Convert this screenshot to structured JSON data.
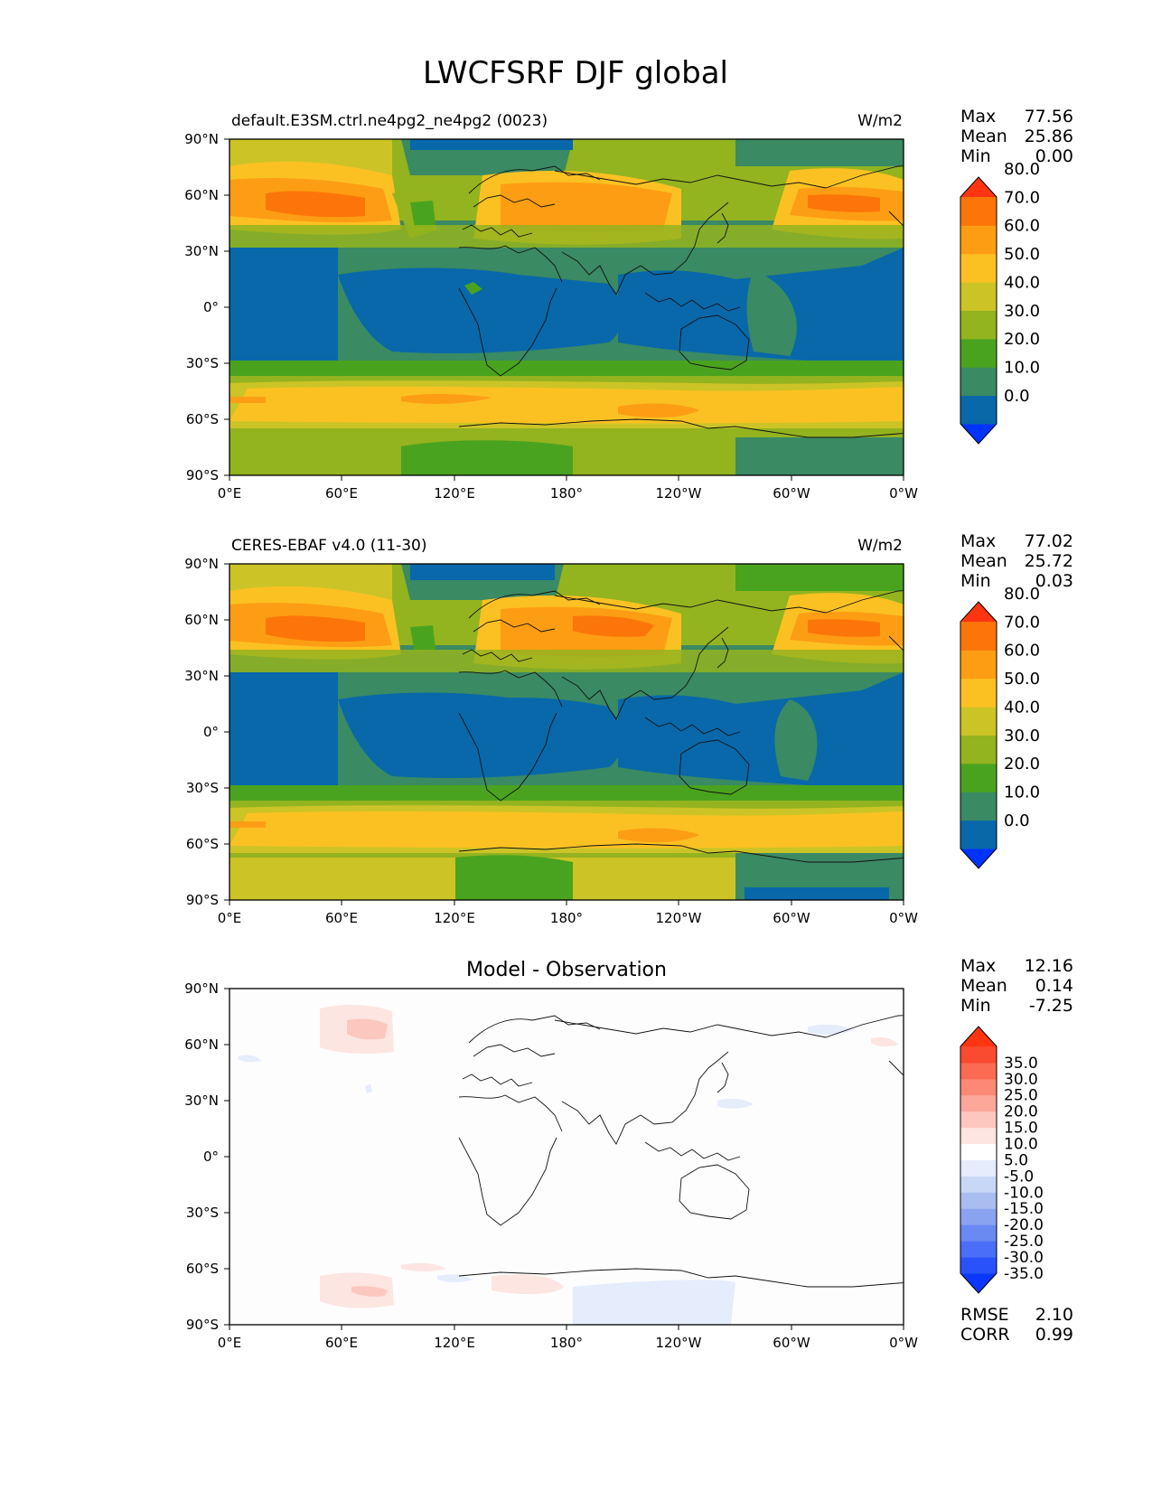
{
  "title": "LWCFSRF DJF global",
  "lat_labels": [
    "90°N",
    "60°N",
    "30°N",
    "0°",
    "30°S",
    "60°S",
    "90°S"
  ],
  "lon_labels": [
    "0°E",
    "60°E",
    "120°E",
    "180°",
    "120°W",
    "60°W",
    "0°W"
  ],
  "panels": [
    {
      "id": "test",
      "left_title": "default.E3SM.ctrl.ne4pg2_ne4pg2 (0023)",
      "center_title": "",
      "units": "W/m2",
      "stats": [
        {
          "label": "Max",
          "value": "77.56"
        },
        {
          "label": "Mean",
          "value": "25.86"
        },
        {
          "label": "Min",
          "value": "0.00"
        }
      ],
      "colorbar": {
        "ticks": [
          "80.0",
          "70.0",
          "60.0",
          "50.0",
          "40.0",
          "30.0",
          "20.0",
          "10.0",
          "0.0"
        ],
        "colors": [
          "#0033ff",
          "#0868aa",
          "#3a8a63",
          "#4aa31e",
          "#93b31f",
          "#ccc426",
          "#fbc122",
          "#fd9d13",
          "#fc7508",
          "#ff3511"
        ]
      }
    },
    {
      "id": "reference",
      "left_title": "CERES-EBAF v4.0 (11-30)",
      "center_title": "",
      "units": "W/m2",
      "stats": [
        {
          "label": "Max",
          "value": "77.02"
        },
        {
          "label": "Mean",
          "value": "25.72"
        },
        {
          "label": "Min",
          "value": "0.03"
        }
      ],
      "colorbar": {
        "ticks": [
          "80.0",
          "70.0",
          "60.0",
          "50.0",
          "40.0",
          "30.0",
          "20.0",
          "10.0",
          "0.0"
        ],
        "colors": [
          "#0033ff",
          "#0868aa",
          "#3a8a63",
          "#4aa31e",
          "#93b31f",
          "#ccc426",
          "#fbc122",
          "#fd9d13",
          "#fc7508",
          "#ff3511"
        ]
      }
    },
    {
      "id": "difference",
      "left_title": "",
      "center_title": "Model - Observation",
      "units": "",
      "stats": [
        {
          "label": "Max",
          "value": "12.16"
        },
        {
          "label": "Mean",
          "value": "0.14"
        },
        {
          "label": "Min",
          "value": "-7.25"
        }
      ],
      "colorbar": {
        "ticks": [
          "35.0",
          "30.0",
          "25.0",
          "20.0",
          "15.0",
          "10.0",
          "5.0",
          "-5.0",
          "-10.0",
          "-15.0",
          "-20.0",
          "-25.0",
          "-30.0",
          "-35.0"
        ],
        "colors": [
          "#0b36ff",
          "#2a52fb",
          "#4a6ef7",
          "#6a89f3",
          "#8aa3f1",
          "#a9bdf1",
          "#c9d7f6",
          "#e5ecfc",
          "#ffffff",
          "#fde5e1",
          "#fcc7be",
          "#fca79a",
          "#fc8875",
          "#fb6a52",
          "#fa4a2f",
          "#ff3511"
        ]
      },
      "bottom_stats": [
        {
          "label": "RMSE",
          "value": "2.10"
        },
        {
          "label": "CORR",
          "value": "0.99"
        }
      ]
    }
  ],
  "colors": {
    "band_10_20": "#3a8a63",
    "band_0_10": "#0868aa",
    "band_20_30": "#4aa31e",
    "band_30_40": "#93b31f",
    "band_40_50": "#ccc426",
    "band_50_60": "#fbc122",
    "band_60_70": "#fd9d13",
    "band_70_80": "#fc7508",
    "diff_pos_5_10": "#fde5e1",
    "diff_pos_10_15": "#fcc7be",
    "diff_neg_5_10": "#e5ecfc",
    "diff_neg_10_15": "#c9d7f6"
  }
}
